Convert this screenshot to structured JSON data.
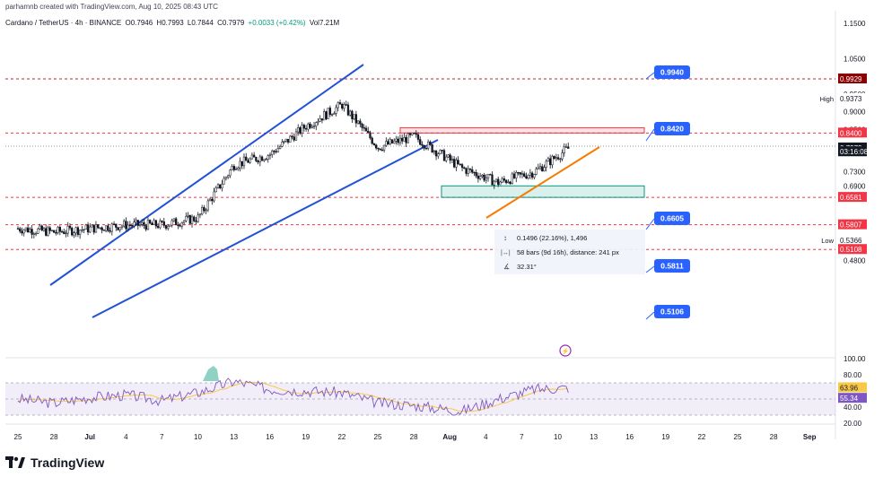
{
  "header": {
    "credit": "parhamnb created with TradingView.com, Aug 10, 2025 08:43 UTC"
  },
  "ohlc": {
    "symbol": "Cardano / TetherUS · 4h · BINANCE",
    "open": "O0.7946",
    "high": "H0.7993",
    "low": "L0.7844",
    "close": "C0.7979",
    "change": "+0.0033 (+0.42%)",
    "volume": "Vol7.21M"
  },
  "price_axis": {
    "ticks": [
      "1.1500",
      "1.0500",
      "0.9500",
      "0.9000",
      "0.8500",
      "0.7300",
      "0.6900",
      "0.5800",
      "0.5300",
      "0.4800"
    ],
    "labels": [
      {
        "text": "0.9929",
        "bg": "#8b0000",
        "fg": "#ffffff",
        "price": 0.9929
      },
      {
        "text": "0.9373",
        "bg": "#ffffff",
        "fg": "#131722",
        "price": 0.9373,
        "prefix": "High"
      },
      {
        "text": "0.8400",
        "bg": "#f23645",
        "fg": "#ffffff",
        "price": 0.84
      },
      {
        "text": "0.8029",
        "bg": "#ffffff",
        "fg": "#131722",
        "price": 0.8029
      },
      {
        "text": "0.7979",
        "bg": "#131722",
        "fg": "#ffffff",
        "price": 0.7979
      },
      {
        "text": "03:16:08",
        "bg": "#131722",
        "fg": "#ffffff",
        "price": 0.787
      },
      {
        "text": "0.6581",
        "bg": "#f23645",
        "fg": "#ffffff",
        "price": 0.6581
      },
      {
        "text": "0.5807",
        "bg": "#f23645",
        "fg": "#ffffff",
        "price": 0.5807
      },
      {
        "text": "0.5366",
        "bg": "#ffffff",
        "fg": "#131722",
        "price": 0.5366,
        "prefix": "Low"
      },
      {
        "text": "0.5108",
        "bg": "#f23645",
        "fg": "#ffffff",
        "price": 0.5108
      }
    ]
  },
  "annotations": {
    "callouts": [
      "0.9940",
      "0.8420",
      "0.6605",
      "0.5811",
      "0.5106"
    ],
    "measure": {
      "price_range": "0.1496 (22.16%), 1,496",
      "bars": "58 bars (9d 16h), distance: 241 px",
      "angle": "32.31°"
    }
  },
  "rsi": {
    "ticks": [
      "100.00",
      "80.00",
      "40.00",
      "20.00"
    ],
    "value": "63.96",
    "ma_value": "55.34",
    "value_color": "#7e57c2",
    "ma_color": "#f7c948"
  },
  "time_axis": {
    "labels": [
      "25",
      "28",
      "Jul",
      "4",
      "7",
      "10",
      "13",
      "16",
      "19",
      "22",
      "25",
      "28",
      "Aug",
      "4",
      "7",
      "10",
      "13",
      "16",
      "19",
      "22",
      "25",
      "28",
      "Sep"
    ]
  },
  "footer": {
    "brand": "TradingView"
  },
  "chart_data": {
    "type": "line",
    "title": "Cardano / TetherUS · 4h · BINANCE",
    "ylim": [
      0.45,
      1.18
    ],
    "x": [
      "Jun 25",
      "Jun 28",
      "Jul 1",
      "Jul 4",
      "Jul 7",
      "Jul 10",
      "Jul 13",
      "Jul 16",
      "Jul 19",
      "Jul 22",
      "Jul 25",
      "Jul 28",
      "Aug 1",
      "Aug 4",
      "Aug 7",
      "Aug 10"
    ],
    "series": [
      {
        "values": [
          0.57,
          0.56,
          0.57,
          0.58,
          0.58,
          0.6,
          0.75,
          0.78,
          0.86,
          0.92,
          0.8,
          0.83,
          0.74,
          0.7,
          0.73,
          0.8
        ]
      }
    ],
    "horizontal_levels": [
      0.9929,
      0.84,
      0.6581,
      0.5807,
      0.5108
    ],
    "resistance_zone": [
      0.84,
      0.855
    ],
    "support_zone": [
      0.6581,
      0.6905
    ],
    "rsi_values": [
      50,
      45,
      52,
      55,
      48,
      58,
      72,
      62,
      60,
      58,
      45,
      42,
      35,
      50,
      62,
      64
    ]
  }
}
